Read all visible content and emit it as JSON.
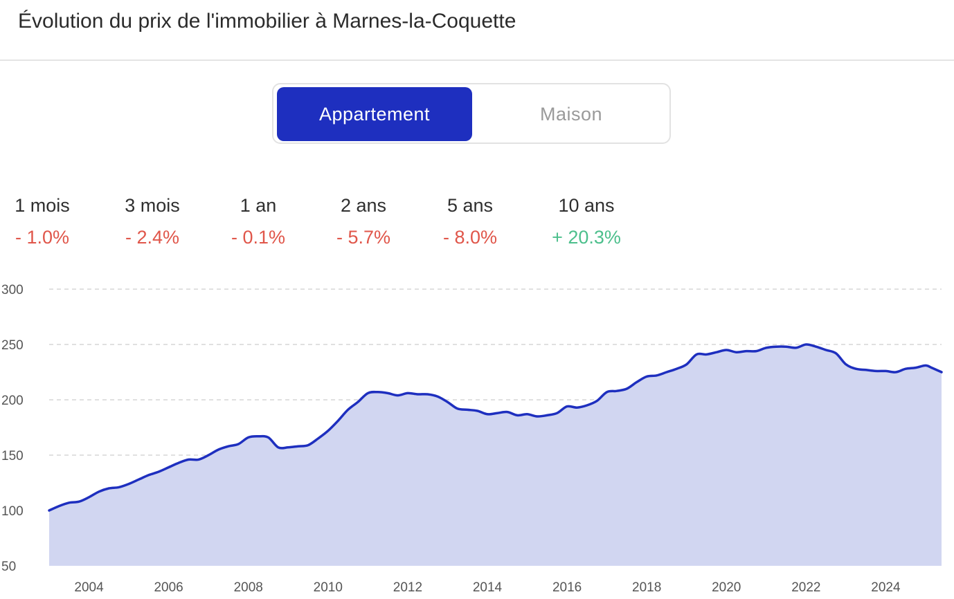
{
  "header": {
    "title": "Évolution du prix de l'immobilier à Marnes-la-Coquette"
  },
  "toggle": {
    "options": [
      {
        "label": "Appartement",
        "active": true
      },
      {
        "label": "Maison",
        "active": false
      }
    ]
  },
  "stats": [
    {
      "period": "1 mois",
      "change": "- 1.0%",
      "trend": "negative"
    },
    {
      "period": "3 mois",
      "change": "- 2.4%",
      "trend": "negative"
    },
    {
      "period": "1 an",
      "change": "- 0.1%",
      "trend": "negative"
    },
    {
      "period": "2 ans",
      "change": "- 5.7%",
      "trend": "negative"
    },
    {
      "period": "5 ans",
      "change": "- 8.0%",
      "trend": "negative"
    },
    {
      "period": "10 ans",
      "change": "+ 20.3%",
      "trend": "positive"
    }
  ],
  "colors": {
    "accent": "#1e2fbf",
    "negative": "#e0564a",
    "positive": "#4cbf8c",
    "area_fill": "#d1d6f1",
    "line": "#1e2fbf",
    "grid": "#d5d5d5"
  },
  "chart_data": {
    "type": "area",
    "title": "",
    "xlabel": "",
    "ylabel": "",
    "ylim": [
      50,
      300
    ],
    "xlim": [
      2003.0,
      2025.4
    ],
    "yticks": [
      50,
      100,
      150,
      200,
      250,
      300
    ],
    "xticks": [
      2004,
      2006,
      2008,
      2010,
      2012,
      2014,
      2016,
      2018,
      2020,
      2022,
      2024
    ],
    "grid": true,
    "legend": "none",
    "series": [
      {
        "x": [
          2003.0,
          2003.25,
          2003.5,
          2003.75,
          2004.0,
          2004.25,
          2004.5,
          2004.75,
          2005.0,
          2005.25,
          2005.5,
          2005.75,
          2006.0,
          2006.25,
          2006.5,
          2006.75,
          2007.0,
          2007.25,
          2007.5,
          2007.75,
          2008.0,
          2008.25,
          2008.5,
          2008.75,
          2009.0,
          2009.25,
          2009.5,
          2009.75,
          2010.0,
          2010.25,
          2010.5,
          2010.75,
          2011.0,
          2011.25,
          2011.5,
          2011.75,
          2012.0,
          2012.25,
          2012.5,
          2012.75,
          2013.0,
          2013.25,
          2013.5,
          2013.75,
          2014.0,
          2014.25,
          2014.5,
          2014.75,
          2015.0,
          2015.25,
          2015.5,
          2015.75,
          2016.0,
          2016.25,
          2016.5,
          2016.75,
          2017.0,
          2017.25,
          2017.5,
          2017.75,
          2018.0,
          2018.25,
          2018.5,
          2018.75,
          2019.0,
          2019.25,
          2019.5,
          2019.75,
          2020.0,
          2020.25,
          2020.5,
          2020.75,
          2021.0,
          2021.25,
          2021.5,
          2021.75,
          2022.0,
          2022.25,
          2022.5,
          2022.75,
          2023.0,
          2023.25,
          2023.5,
          2023.75,
          2024.0,
          2024.25,
          2024.5,
          2024.75,
          2025.0,
          2025.15,
          2025.4
        ],
        "values": [
          100,
          104,
          107,
          108,
          112,
          117,
          120,
          121,
          124,
          128,
          132,
          135,
          139,
          143,
          146,
          146,
          150,
          155,
          158,
          160,
          166,
          167,
          166,
          157,
          157,
          158,
          159,
          165,
          172,
          181,
          191,
          198,
          206,
          207,
          206,
          204,
          206,
          205,
          205,
          203,
          198,
          192,
          191,
          190,
          187,
          188,
          189,
          186,
          187,
          185,
          186,
          188,
          194,
          193,
          195,
          199,
          207,
          208,
          210,
          216,
          221,
          222,
          225,
          228,
          232,
          241,
          241,
          243,
          245,
          243,
          244,
          244,
          247,
          248,
          248,
          247,
          250,
          248,
          245,
          242,
          232,
          228,
          227,
          226,
          226,
          225,
          228,
          229,
          231,
          229,
          225
        ]
      }
    ]
  }
}
